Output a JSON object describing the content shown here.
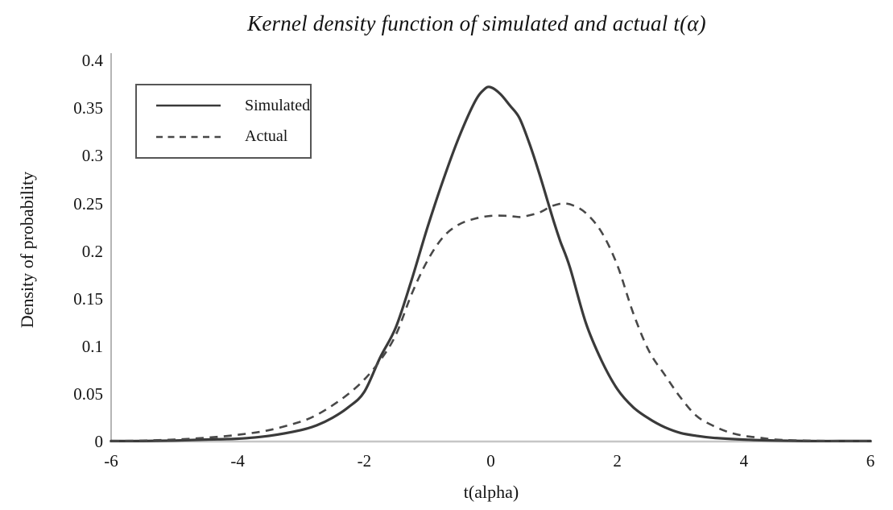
{
  "title": "Kernel density function of simulated and actual t(α)",
  "chart_data": {
    "type": "line",
    "title": "Kernel density function of simulated and actual t(α)",
    "xlabel": "t(alpha)",
    "ylabel": "Density of probability",
    "xlim": [
      -6,
      6
    ],
    "ylim": [
      0,
      0.4
    ],
    "x_ticks": [
      -6,
      -4,
      -2,
      0,
      2,
      4,
      6
    ],
    "x_tick_labels": [
      "-6",
      "-4",
      "-2",
      "0",
      "2",
      "4",
      "6"
    ],
    "y_ticks": [
      0,
      0.05,
      0.1,
      0.15,
      0.2,
      0.25,
      0.3,
      0.35,
      0.4
    ],
    "y_tick_labels": [
      "0",
      "0.05",
      "0.1",
      "0.15",
      "0.2",
      "0.25",
      "0.3",
      "0.35",
      "0.4"
    ],
    "grid": false,
    "legend_position": "upper-left-inside",
    "series": [
      {
        "name": "Simulated",
        "style": "solid",
        "color": "#3a3a3a",
        "points": [
          [
            -6,
            0.0005
          ],
          [
            -5.5,
            0.0005
          ],
          [
            -5,
            0.001
          ],
          [
            -4.5,
            0.002
          ],
          [
            -4,
            0.003
          ],
          [
            -3.5,
            0.006
          ],
          [
            -3,
            0.012
          ],
          [
            -2.75,
            0.017
          ],
          [
            -2.5,
            0.025
          ],
          [
            -2.25,
            0.036
          ],
          [
            -2,
            0.052
          ],
          [
            -1.75,
            0.088
          ],
          [
            -1.5,
            0.12
          ],
          [
            -1.25,
            0.17
          ],
          [
            -1,
            0.225
          ],
          [
            -0.75,
            0.275
          ],
          [
            -0.5,
            0.32
          ],
          [
            -0.25,
            0.357
          ],
          [
            -0.1,
            0.37
          ],
          [
            0,
            0.372
          ],
          [
            0.15,
            0.365
          ],
          [
            0.3,
            0.353
          ],
          [
            0.45,
            0.34
          ],
          [
            0.6,
            0.315
          ],
          [
            0.75,
            0.285
          ],
          [
            0.9,
            0.252
          ],
          [
            1,
            0.23
          ],
          [
            1.1,
            0.21
          ],
          [
            1.25,
            0.183
          ],
          [
            1.5,
            0.125
          ],
          [
            1.75,
            0.085
          ],
          [
            2,
            0.055
          ],
          [
            2.25,
            0.036
          ],
          [
            2.5,
            0.024
          ],
          [
            2.75,
            0.015
          ],
          [
            3,
            0.009
          ],
          [
            3.25,
            0.006
          ],
          [
            3.5,
            0.004
          ],
          [
            4,
            0.002
          ],
          [
            4.5,
            0.001
          ],
          [
            5,
            0.0005
          ],
          [
            5.5,
            0.0005
          ],
          [
            6,
            0.0005
          ]
        ]
      },
      {
        "name": "Actual",
        "style": "dashed",
        "color": "#484848",
        "points": [
          [
            -6,
            0.0005
          ],
          [
            -5.5,
            0.001
          ],
          [
            -5,
            0.002
          ],
          [
            -4.5,
            0.004
          ],
          [
            -4,
            0.007
          ],
          [
            -3.5,
            0.012
          ],
          [
            -3,
            0.021
          ],
          [
            -2.75,
            0.028
          ],
          [
            -2.5,
            0.038
          ],
          [
            -2.25,
            0.05
          ],
          [
            -2,
            0.065
          ],
          [
            -1.75,
            0.085
          ],
          [
            -1.5,
            0.112
          ],
          [
            -1.25,
            0.155
          ],
          [
            -1,
            0.19
          ],
          [
            -0.75,
            0.215
          ],
          [
            -0.5,
            0.228
          ],
          [
            -0.25,
            0.234
          ],
          [
            0,
            0.237
          ],
          [
            0.25,
            0.237
          ],
          [
            0.4,
            0.236
          ],
          [
            0.5,
            0.236
          ],
          [
            0.75,
            0.24
          ],
          [
            0.9,
            0.245
          ],
          [
            1,
            0.248
          ],
          [
            1.15,
            0.25
          ],
          [
            1.3,
            0.248
          ],
          [
            1.5,
            0.24
          ],
          [
            1.75,
            0.22
          ],
          [
            2,
            0.185
          ],
          [
            2.25,
            0.135
          ],
          [
            2.5,
            0.095
          ],
          [
            2.75,
            0.07
          ],
          [
            3,
            0.046
          ],
          [
            3.25,
            0.027
          ],
          [
            3.5,
            0.017
          ],
          [
            3.75,
            0.01
          ],
          [
            4,
            0.006
          ],
          [
            4.25,
            0.004
          ],
          [
            4.5,
            0.002
          ],
          [
            5,
            0.001
          ],
          [
            5.5,
            0.0005
          ],
          [
            6,
            0.0005
          ]
        ]
      }
    ]
  },
  "legend": {
    "items": [
      {
        "label": "Simulated",
        "line": "solid"
      },
      {
        "label": "Actual",
        "line": "dashed"
      }
    ]
  },
  "colors": {
    "curve_solid": "#3a3a3a",
    "curve_dashed": "#484848",
    "x_axis_line": "#c6c6c6",
    "y_axis_line": "#b5b5b5",
    "legend_border": "#565656",
    "text": "#141414",
    "background": "#ffffff"
  }
}
